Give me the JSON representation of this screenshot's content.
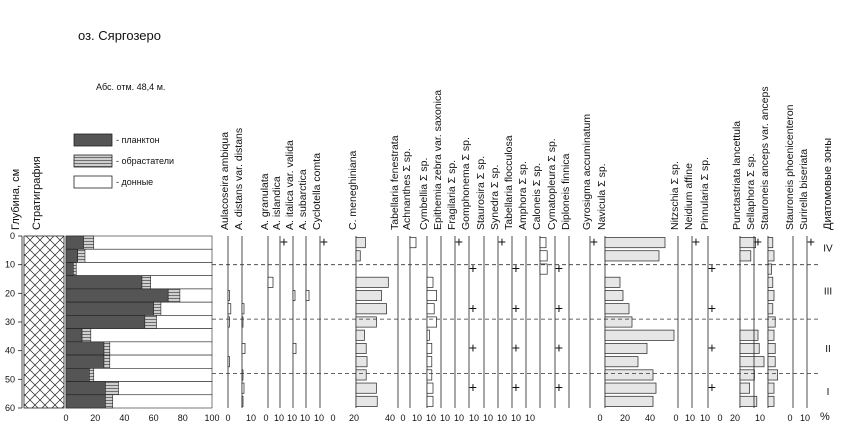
{
  "chart_data": {
    "type": "diatom-stratigraphy",
    "title": "оз. Сяргозеро",
    "subtitle": "Абс. отм. 48,4 м.",
    "depth_label": "Глубина, см",
    "strat_label": "Стратиграфия",
    "zones_label": "Диатомовые зоны",
    "percent_label": "%",
    "plus_symbol": "+",
    "depth_ticks": [
      0,
      10,
      20,
      30,
      40,
      50,
      60
    ],
    "depth_range": [
      0,
      60
    ],
    "legend": [
      {
        "label": "- планктон",
        "color": "#555555",
        "kind": "plankton"
      },
      {
        "label": "- обрастатели",
        "color": "#aaaaaa",
        "kind": "periphyton"
      },
      {
        "label": "- донные",
        "color": "#ffffff",
        "kind": "benthic"
      }
    ],
    "summary": {
      "axis_ticks": [
        0,
        20,
        40,
        60,
        80,
        100
      ],
      "depths": [
        0,
        5,
        10,
        15,
        20,
        25,
        30,
        35,
        40,
        45,
        50,
        55,
        60
      ],
      "plankton": [
        12,
        8,
        5,
        52,
        70,
        60,
        54,
        11,
        26,
        26,
        16,
        27,
        27
      ],
      "periphyton": [
        7,
        5,
        2,
        6,
        8,
        5,
        8,
        6,
        4,
        4,
        3,
        9,
        5
      ]
    },
    "zones": [
      {
        "label": "IV",
        "depth": 4
      },
      {
        "label": "III",
        "depth": 19
      },
      {
        "label": "II",
        "depth": 39
      },
      {
        "label": "I",
        "depth": 54
      }
    ],
    "zone_boundaries": [
      10,
      29,
      48
    ],
    "taxa": [
      {
        "name": "Aulacoseira ambiqua",
        "values": [
          0,
          0,
          0,
          0,
          1,
          2,
          1,
          0,
          0,
          1,
          0,
          0,
          0
        ]
      },
      {
        "name": "A. distans var. distans",
        "values": [
          0,
          0,
          0,
          0,
          0,
          2,
          1,
          0,
          3,
          0,
          1,
          2,
          1
        ]
      },
      {
        "name": "A. granulata",
        "values": [
          0,
          0,
          0,
          5,
          0,
          0,
          0,
          0,
          0,
          0,
          0,
          0,
          0
        ]
      },
      {
        "name": "A. islandica",
        "values": [
          0,
          0,
          0,
          0,
          0,
          0,
          0,
          0,
          0,
          0,
          0,
          0,
          0
        ]
      },
      {
        "name": "A. italica var. valida",
        "values": [
          0,
          0,
          0,
          0,
          2,
          0,
          0,
          0,
          3,
          0,
          0,
          0,
          0
        ]
      },
      {
        "name": "A. subarctica",
        "values": [
          0,
          0,
          0,
          0,
          3,
          0,
          0,
          0,
          0,
          0,
          0,
          0,
          0
        ]
      },
      {
        "name": "Cyclotella comta",
        "values": [
          0,
          0,
          0,
          0,
          0,
          0,
          0,
          0,
          0,
          0,
          0,
          0,
          0
        ]
      },
      {
        "name": "C. meneghiniana",
        "values": [
          11,
          5,
          0,
          38,
          30,
          36,
          24,
          10,
          12,
          13,
          12,
          24,
          25
        ]
      },
      {
        "name": "Tabellaria fenestrata",
        "values": [
          0,
          0,
          0,
          0,
          0,
          0,
          0,
          0,
          0,
          0,
          0,
          0,
          0
        ]
      },
      {
        "name": "Achnanthes Σ sp.",
        "values": [
          5,
          0,
          0,
          0,
          0,
          0,
          0,
          0,
          0,
          0,
          0,
          0,
          0
        ]
      },
      {
        "name": "Cymbellia Σ sp.",
        "values": [
          0,
          0,
          0,
          5,
          8,
          6,
          8,
          2,
          4,
          4,
          4,
          5,
          5
        ]
      },
      {
        "name": "Epithemia zebra var. saxonica",
        "values": [
          0,
          0,
          0,
          0,
          0,
          0,
          0,
          0,
          0,
          0,
          0,
          0,
          0
        ]
      },
      {
        "name": "Fragilaria Σ sp.",
        "values": [
          0,
          0,
          0,
          0,
          0,
          0,
          0,
          0,
          0,
          0,
          0,
          0,
          0
        ]
      },
      {
        "name": "Gomphonema Σ sp.",
        "values": [
          0,
          0,
          0,
          0,
          0,
          0,
          0,
          0,
          0,
          0,
          0,
          0,
          0
        ]
      },
      {
        "name": "Staurosira Σ sp.",
        "values": [
          0,
          0,
          0,
          0,
          0,
          0,
          0,
          0,
          0,
          0,
          0,
          0,
          0
        ]
      },
      {
        "name": "Synedra Σ sp.",
        "values": [
          0,
          0,
          0,
          0,
          0,
          0,
          0,
          0,
          0,
          0,
          0,
          0,
          0
        ]
      },
      {
        "name": "Tabellaria flocculosa",
        "values": [
          0,
          0,
          0,
          0,
          0,
          0,
          0,
          0,
          0,
          0,
          0,
          0,
          0
        ]
      },
      {
        "name": "Amphora Σ sp.",
        "values": [
          0,
          0,
          0,
          0,
          0,
          0,
          0,
          0,
          0,
          0,
          0,
          0,
          0
        ]
      },
      {
        "name": "Caloneis Σ sp.",
        "values": [
          5,
          6,
          6,
          0,
          0,
          0,
          0,
          0,
          0,
          0,
          0,
          0,
          0
        ]
      },
      {
        "name": "Cymatopleura Σ sp.",
        "values": [
          0,
          0,
          0,
          0,
          0,
          0,
          0,
          0,
          0,
          0,
          0,
          0,
          0
        ]
      },
      {
        "name": "Diploneis finnica",
        "values": [
          0,
          0,
          0,
          0,
          0,
          0,
          0,
          0,
          0,
          0,
          0,
          0,
          0
        ]
      },
      {
        "name": "Gyrosigma accuminatum",
        "values": [
          0,
          0,
          0,
          0,
          0,
          0,
          0,
          0,
          0,
          0,
          0,
          0,
          0
        ]
      },
      {
        "name": "Navicula Σ sp.",
        "values": [
          40,
          36,
          0,
          10,
          12,
          16,
          18,
          46,
          28,
          22,
          32,
          34,
          32
        ]
      },
      {
        "name": "Nitzschia Σ sp.",
        "values": [
          0,
          0,
          0,
          0,
          0,
          0,
          0,
          0,
          0,
          0,
          0,
          0,
          0
        ]
      },
      {
        "name": "Neidium affine",
        "values": [
          0,
          0,
          0,
          0,
          0,
          0,
          0,
          0,
          0,
          0,
          0,
          0,
          0
        ]
      },
      {
        "name": "Pinnularia Σ sp.",
        "values": [
          0,
          0,
          0,
          0,
          0,
          0,
          0,
          0,
          0,
          0,
          0,
          0,
          0
        ]
      },
      {
        "name": "Punctastriata lancettula",
        "values": [
          13,
          9,
          0,
          0,
          0,
          0,
          0,
          15,
          16,
          20,
          12,
          8,
          14
        ]
      },
      {
        "name": "Sellaphora Σ sp.",
        "values": [
          0,
          0,
          0,
          0,
          0,
          0,
          0,
          0,
          0,
          0,
          0,
          0,
          0
        ]
      },
      {
        "name": "Stauroneis anceps var. anceps",
        "values": [
          4,
          5,
          3,
          4,
          5,
          4,
          6,
          5,
          6,
          6,
          8,
          5,
          5
        ]
      },
      {
        "name": "Stauroneis phoenicenteron",
        "values": [
          0,
          0,
          0,
          0,
          0,
          0,
          0,
          0,
          0,
          0,
          0,
          0,
          0
        ]
      },
      {
        "name": "Surirella biseriata",
        "values": [
          0,
          0,
          0,
          0,
          0,
          0,
          0,
          0,
          0,
          0,
          0,
          0,
          0
        ]
      }
    ],
    "scales": [
      {
        "label": "0",
        "pos": "col0"
      },
      {
        "label": "10",
        "pos": "col1"
      },
      {
        "label": "0",
        "pos": "a"
      },
      {
        "label": "10",
        "pos": "b"
      },
      {
        "label": "10",
        "pos": "c"
      },
      {
        "label": "10",
        "pos": "d"
      },
      {
        "label": "10",
        "pos": "e"
      },
      {
        "label": "0",
        "pos": "f"
      },
      {
        "label": "20",
        "pos": "g"
      },
      {
        "label": "40",
        "pos": "h"
      },
      {
        "label": "0",
        "pos": "i"
      },
      {
        "label": "10",
        "pos": "j"
      },
      {
        "label": "10",
        "pos": "k"
      },
      {
        "label": "10",
        "pos": "l"
      },
      {
        "label": "10",
        "pos": "m"
      },
      {
        "label": "10",
        "pos": "n"
      },
      {
        "label": "10",
        "pos": "o"
      },
      {
        "label": "10",
        "pos": "p"
      },
      {
        "label": "10",
        "pos": "q"
      },
      {
        "label": "10",
        "pos": "r"
      },
      {
        "label": "0",
        "pos": "s"
      },
      {
        "label": "20",
        "pos": "t"
      },
      {
        "label": "40",
        "pos": "u"
      },
      {
        "label": "0",
        "pos": "v"
      },
      {
        "label": "10",
        "pos": "w"
      },
      {
        "label": "10",
        "pos": "x"
      },
      {
        "label": "0",
        "pos": "y"
      },
      {
        "label": "20",
        "pos": "z"
      },
      {
        "label": "10",
        "pos": "aa"
      },
      {
        "label": "0",
        "pos": "ab"
      },
      {
        "label": "10",
        "pos": "ac"
      }
    ]
  }
}
